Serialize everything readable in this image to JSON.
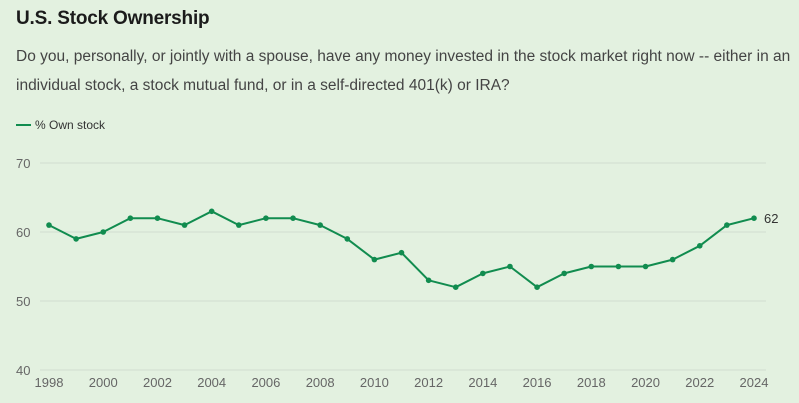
{
  "header": {
    "title": "U.S. Stock Ownership",
    "subtitle": "Do you, personally, or jointly with a spouse, have any money invested in the stock market right now -- either in an individual stock, a stock mutual fund, or in a self-directed 401(k) or IRA?"
  },
  "colors": {
    "line": "#118c4f",
    "background": "#e3f1e0"
  },
  "chart_data": {
    "type": "line",
    "title": "U.S. Stock Ownership",
    "xlabel": "",
    "ylabel": "",
    "legend": {
      "position": "top-left",
      "entries": [
        "% Own stock"
      ]
    },
    "grid": true,
    "ylim": [
      40,
      70
    ],
    "yticks": [
      40,
      50,
      60,
      70
    ],
    "xlim": [
      1998,
      2024
    ],
    "xticks": [
      1998,
      2000,
      2002,
      2004,
      2006,
      2008,
      2010,
      2012,
      2014,
      2016,
      2018,
      2020,
      2022,
      2024
    ],
    "x": [
      1998,
      1999,
      2000,
      2001,
      2002,
      2003,
      2004,
      2005,
      2006,
      2007,
      2008,
      2009,
      2010,
      2011,
      2012,
      2013,
      2014,
      2015,
      2016,
      2017,
      2018,
      2019,
      2020,
      2021,
      2022,
      2023,
      2024
    ],
    "series": [
      {
        "name": "% Own stock",
        "values": [
          61,
          59,
          60,
          62,
          62,
          61,
          63,
          61,
          62,
          62,
          61,
          59,
          56,
          57,
          53,
          52,
          54,
          55,
          52,
          54,
          55,
          55,
          55,
          56,
          58,
          61,
          62
        ]
      }
    ],
    "annotations": [
      {
        "x": 2024,
        "label": "62"
      }
    ]
  }
}
